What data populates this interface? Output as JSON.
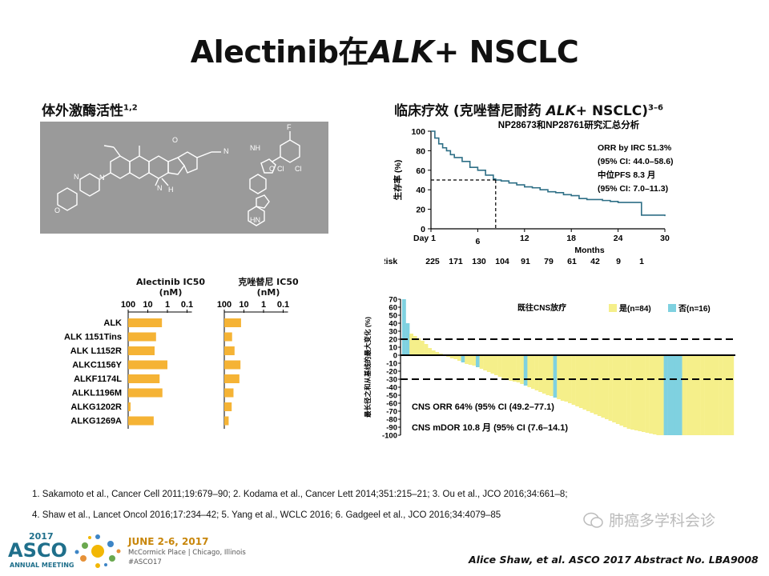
{
  "slide": {
    "title_pre": "Alectinib在",
    "title_gene": "ALK",
    "title_post": "+ NSCLC",
    "left_heading": "体外激酶活性",
    "left_heading_sup": "1,2",
    "right_heading_pre": "临床疗效 (克唑替尼耐药 ",
    "right_heading_gene": "ALK",
    "right_heading_post": "+ NSCLC)",
    "right_heading_sup": "3–6",
    "refs_line1": "1. Sakamoto et al., Cancer Cell 2011;19:679–90; 2. Kodama et al., Cancer Lett 2014;351:215–21; 3. Ou et al., JCO 2016;34:661–8;",
    "refs_line2": "4. Shaw et al., Lancet Oncol 2016;17:234–42; 5. Yang et al., WCLC 2016; 6. Gadgeel et al., JCO 2016;34:4079–85",
    "citation": "Alice Shaw, et al.  ASCO 2017 Abstract No. LBA9008",
    "asco_year": "2017",
    "asco_name": "ASCO",
    "asco_sub": "ANNUAL MEETING",
    "meeting_date": "JUNE 2-6, 2017",
    "meeting_place": "McCormick Place | Chicago, Illinois",
    "meeting_tag": "#ASCO17",
    "wechat_label": "肺癌多学科会诊"
  },
  "chart_data": [
    {
      "type": "line",
      "title": "NP28673和NP28761研究汇总分析",
      "ylabel": "生存率 (%)",
      "xlabel": "Months",
      "xticks": [
        "Day 1",
        "6",
        "12",
        "18",
        "24",
        "30"
      ],
      "xlim": [
        0,
        30
      ],
      "ylim": [
        0,
        100
      ],
      "yticks": [
        0,
        20,
        40,
        60,
        80,
        100
      ],
      "median_pfs_marker": [
        8.3,
        50
      ],
      "annotations": [
        "ORR by IRC 51.3%",
        "(95% CI: 44.0–58.6)",
        "中位PFS 8.3 月",
        "(95% CI: 7.0–11.3)"
      ],
      "risk_label": "No. at Risk",
      "at_risk": [
        225,
        171,
        130,
        104,
        91,
        79,
        61,
        42,
        9,
        1
      ],
      "series": [
        {
          "x": [
            0,
            0.5,
            1,
            1.5,
            2,
            2.5,
            3,
            4,
            5,
            6,
            7,
            8,
            8.3,
            9,
            10,
            11,
            12,
            13,
            14,
            15,
            16,
            17,
            18,
            19,
            20,
            21,
            22,
            23,
            24,
            25,
            26,
            27,
            28,
            29,
            30
          ],
          "y": [
            100,
            93,
            87,
            83,
            80,
            76,
            73,
            69,
            63,
            60,
            55,
            51,
            50,
            49,
            47,
            45,
            43,
            42,
            40,
            38,
            37,
            35,
            34,
            31,
            30,
            30,
            29,
            28,
            27,
            27,
            27,
            14,
            14,
            14,
            13
          ],
          "color": "#2e6f86"
        }
      ]
    },
    {
      "type": "bar",
      "title": "Alectinib IC50 (nM)",
      "xscale": "log-reversed",
      "xticks": [
        "100",
        "10",
        "1",
        "0.1"
      ],
      "xlim": [
        100,
        0.1
      ],
      "categories": [
        "ALK",
        "ALK 1151Tins",
        "ALK L1152R",
        "ALKC1156Y",
        "ALKF1174L",
        "ALKL1196M",
        "ALKG1202R",
        "ALKG1269A"
      ],
      "values": [
        1.9,
        3.8,
        4.5,
        1.0,
        2.5,
        1.8,
        100,
        5.0
      ],
      "color": "#f5b335"
    },
    {
      "type": "bar",
      "title": "克唑替尼 IC50 (nM)",
      "xscale": "log-reversed",
      "xticks": [
        "100",
        "10",
        "1",
        "0.1"
      ],
      "xlim": [
        100,
        0.1
      ],
      "categories": [
        "ALK",
        "ALK 1151Tins",
        "ALK L1152R",
        "ALKC1156Y",
        "ALKF1174L",
        "ALKL1196M",
        "ALKG1202R",
        "ALKG1269A"
      ],
      "values": [
        14,
        40,
        30,
        15,
        17,
        34,
        42,
        60
      ],
      "color": "#f5b335"
    },
    {
      "type": "bar",
      "title": "",
      "ylabel": "最长径之和从基线的最大变化 (%)",
      "ylim": [
        -100,
        70
      ],
      "yticks": [
        70,
        60,
        50,
        40,
        30,
        20,
        10,
        0,
        -10,
        -20,
        -30,
        -40,
        -50,
        -60,
        -70,
        -80,
        -90,
        -100
      ],
      "reference_lines": [
        20,
        -30
      ],
      "legend_title": "既往CNS放疗",
      "legend": [
        {
          "name": "是(n=84)",
          "color": "#f5ef8a"
        },
        {
          "name": "否(n=16)",
          "color": "#7fd1e0"
        }
      ],
      "annotations": [
        "CNS ORR 64% (95% CI (49.2–77.1)",
        "CNS mDOR 10.8 月 (95% CI (7.6–14.1)"
      ],
      "values": [
        70,
        40,
        27,
        24,
        21,
        18,
        14,
        9,
        6,
        4,
        2,
        0,
        -2,
        -4,
        -5,
        -7,
        -9,
        -11,
        -12,
        -13,
        -15,
        -17,
        -19,
        -21,
        -23,
        -25,
        -27,
        -29,
        -30,
        -32,
        -33,
        -34,
        -36,
        -38,
        -40,
        -42,
        -44,
        -46,
        -48,
        -50,
        -51,
        -53,
        -55,
        -57,
        -58,
        -60,
        -62,
        -64,
        -66,
        -68,
        -70,
        -72,
        -74,
        -76,
        -78,
        -80,
        -82,
        -84,
        -86,
        -88,
        -90,
        -92,
        -93,
        -94,
        -95,
        -96,
        -97,
        -98,
        -99,
        -100,
        -100,
        -100,
        -100,
        -100,
        -100,
        -100,
        -100,
        -100,
        -100,
        -100,
        -100,
        -100,
        -100,
        -100,
        -100,
        -100,
        -100,
        -100,
        -100,
        -100
      ],
      "is_no_rt": [
        1,
        1,
        0,
        0,
        0,
        0,
        0,
        0,
        0,
        0,
        0,
        0,
        0,
        0,
        0,
        0,
        1,
        0,
        0,
        0,
        1,
        0,
        0,
        0,
        0,
        0,
        0,
        0,
        0,
        0,
        0,
        0,
        0,
        1,
        0,
        0,
        0,
        0,
        0,
        0,
        0,
        1,
        0,
        0,
        0,
        0,
        0,
        0,
        0,
        0,
        0,
        0,
        0,
        0,
        0,
        0,
        0,
        0,
        0,
        0,
        0,
        0,
        0,
        0,
        0,
        0,
        0,
        0,
        0,
        0,
        0,
        1,
        1,
        1,
        1,
        1,
        0,
        0,
        0,
        0,
        0,
        0,
        0,
        0,
        0,
        0,
        0,
        0,
        0,
        0
      ]
    }
  ]
}
